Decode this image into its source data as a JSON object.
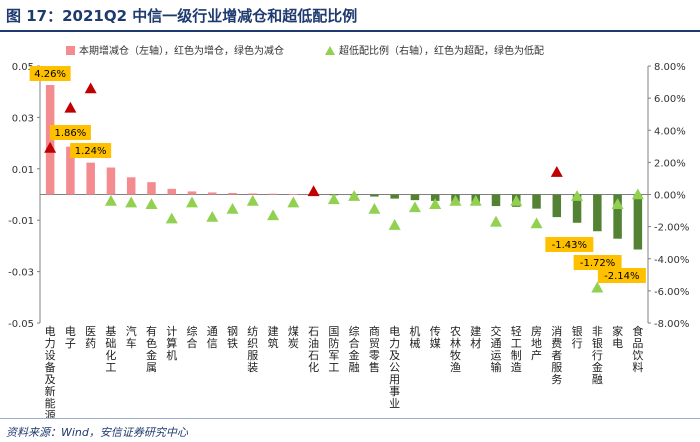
{
  "title": "图 17：2021Q2 中信一级行业增减仓和超低配比例",
  "source": "资料来源：Wind，安信证券研究中心",
  "colors": {
    "increase": "#f48b8f",
    "decrease": "#548235",
    "overweight_marker": "#c00000",
    "underweight_marker": "#92d050",
    "label_bg": "#ffc000",
    "title": "#1f3a6e"
  },
  "chart_data": {
    "type": "bar",
    "legend": {
      "bar_label": "本期增减仓（左轴），红色为增仓，绿色为减仓",
      "marker_label": "超低配比例（右轴），红色为超配，绿色为低配",
      "placement": "top"
    },
    "categories": [
      "电力设备及新能源",
      "电子",
      "医药",
      "基础化工",
      "汽车",
      "有色金属",
      "计算机",
      "综合",
      "通信",
      "钢铁",
      "纺织服装",
      "建筑",
      "煤炭",
      "石油石化",
      "国防军工",
      "综合金融",
      "商贸零售",
      "电力及公用事业",
      "机械",
      "传媒",
      "农林牧渔",
      "建材",
      "交通运输",
      "轻工制造",
      "房地产",
      "消费者服务",
      "银行",
      "非银行金融",
      "家电",
      "食品饮料"
    ],
    "left_axis": {
      "ylim": [
        -0.05,
        0.05
      ],
      "ticks": [
        -0.05,
        -0.03,
        -0.01,
        0.01,
        0.03,
        0.05
      ],
      "tick_labels": [
        "-0.05",
        "-0.03",
        "-0.01",
        "0.01",
        "0.03",
        "0.05"
      ]
    },
    "right_axis": {
      "ylim": [
        -8,
        8
      ],
      "ticks": [
        -8,
        -6,
        -4,
        -2,
        0,
        2,
        4,
        6,
        8
      ],
      "tick_labels": [
        "-8.00%",
        "-6.00%",
        "-4.00%",
        "-2.00%",
        "0.00%",
        "2.00%",
        "4.00%",
        "6.00%",
        "8.00%"
      ]
    },
    "bars": [
      0.0426,
      0.0186,
      0.0124,
      0.0105,
      0.0067,
      0.0048,
      0.0022,
      0.0012,
      0.0008,
      0.0006,
      0.0004,
      0.0003,
      0.0002,
      0.0001,
      -0.0001,
      -0.0002,
      -0.0008,
      -0.0016,
      -0.0022,
      -0.0025,
      -0.0028,
      -0.003,
      -0.0045,
      -0.0048,
      -0.0055,
      -0.0088,
      -0.011,
      -0.0143,
      -0.0172,
      -0.0214
    ],
    "markers": [
      2.9,
      5.4,
      6.6,
      -0.4,
      -0.5,
      -0.6,
      -1.5,
      -0.5,
      -1.4,
      -0.9,
      -0.4,
      -1.3,
      -0.5,
      0.2,
      -0.3,
      -0.1,
      -0.9,
      -1.9,
      -0.8,
      -0.6,
      -0.4,
      -0.4,
      -1.7,
      -0.4,
      -1.8,
      1.4,
      -0.1,
      -5.8,
      -0.6,
      0.0
    ],
    "data_labels": [
      {
        "index": 0,
        "text": "4.26%"
      },
      {
        "index": 1,
        "text": "1.86%"
      },
      {
        "index": 2,
        "text": "1.24%"
      },
      {
        "index": 27,
        "text": "-1.43%"
      },
      {
        "index": 28,
        "text": "-1.72%"
      },
      {
        "index": 29,
        "text": "-2.14%"
      }
    ]
  }
}
